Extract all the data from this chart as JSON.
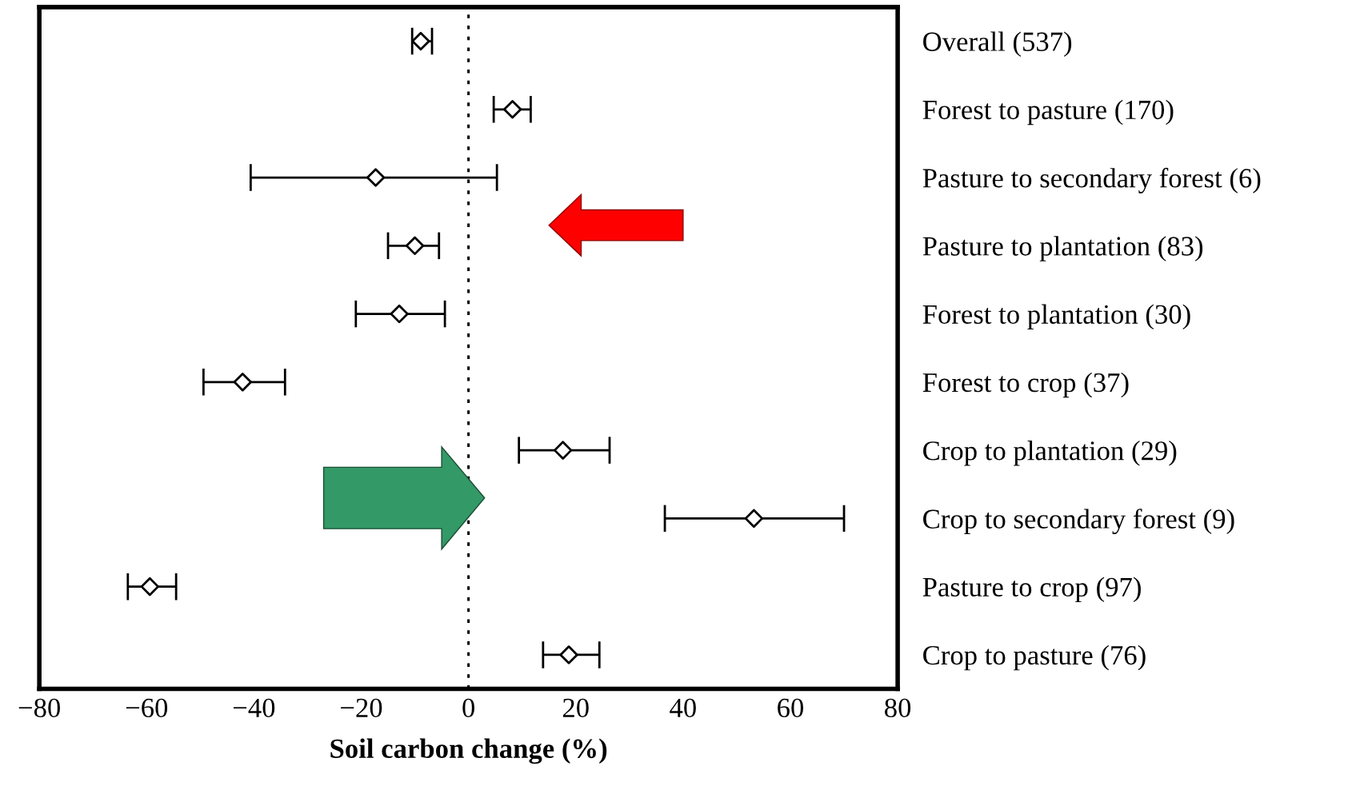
{
  "chart_data": {
    "type": "scatter",
    "orientation": "horizontal",
    "xlabel": "Soil carbon change (%)",
    "categories": [
      "Overall (537)",
      "Forest to pasture (170)",
      "Pasture to secondary forest (6)",
      "Pasture to plantation (83)",
      "Forest to plantation (30)",
      "Forest to crop (37)",
      "Crop to plantation (29)",
      "Crop to secondary forest (9)",
      "Pasture to crop (97)",
      "Crop to pasture (76)"
    ],
    "values": [
      -8.9,
      8.2,
      -17.3,
      -10,
      -12.9,
      -42.1,
      17.6,
      53.2,
      -59.4,
      18.7
    ],
    "errors": [
      [
        -10.5,
        -6.8
      ],
      [
        4.7,
        11.6
      ],
      [
        -40.6,
        5.3
      ],
      [
        -15,
        -5.5
      ],
      [
        -21,
        -4.4
      ],
      [
        -49.4,
        -34.2
      ],
      [
        9.4,
        26.3
      ],
      [
        36.6,
        70
      ],
      [
        -63.5,
        -54.5
      ],
      [
        13.9,
        24.4
      ]
    ],
    "color": "#000000",
    "marker": "diamond",
    "xlim": [
      -80,
      80
    ],
    "xticks": [
      {
        "value": -80,
        "label": "−80"
      },
      {
        "value": -60,
        "label": "−60"
      },
      {
        "value": -40,
        "label": "−40"
      },
      {
        "value": -20,
        "label": "−20"
      },
      0,
      20,
      40,
      60,
      80
    ],
    "ref_lines": [
      {
        "axis": "x",
        "value": 0,
        "color": "#000000",
        "line_style": "dotted"
      }
    ],
    "grid": false,
    "legend": false
  }
}
